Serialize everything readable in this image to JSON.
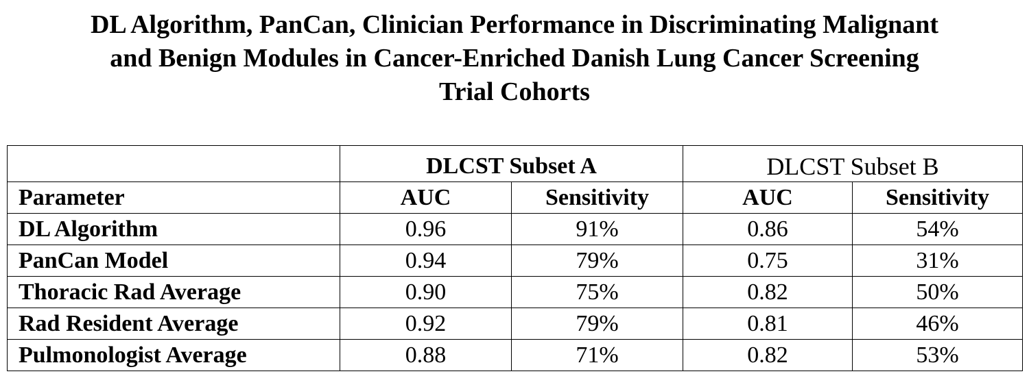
{
  "title": {
    "line1": "DL Algorithm, PanCan, Clinician Performance in Discriminating Malignant",
    "line2": "and Benign Modules in Cancer-Enriched Danish Lung Cancer Screening",
    "line3": "Trial Cohorts"
  },
  "table": {
    "group_headers": [
      "DLCST Subset A",
      "DLCST Subset B"
    ],
    "column_headers": [
      "Parameter",
      "AUC",
      "Sensitivity",
      "AUC",
      "Sensitivity"
    ],
    "rows": [
      {
        "parameter": "DL Algorithm",
        "a_auc": "0.96",
        "a_sens": "91%",
        "b_auc": "0.86",
        "b_sens": "54%"
      },
      {
        "parameter": "PanCan Model",
        "a_auc": "0.94",
        "a_sens": "79%",
        "b_auc": "0.75",
        "b_sens": "31%"
      },
      {
        "parameter": "Thoracic Rad Average",
        "a_auc": "0.90",
        "a_sens": "75%",
        "b_auc": "0.82",
        "b_sens": "50%"
      },
      {
        "parameter": "Rad Resident Average",
        "a_auc": "0.92",
        "a_sens": "79%",
        "b_auc": "0.81",
        "b_sens": "46%"
      },
      {
        "parameter": "Pulmonologist Average",
        "a_auc": "0.88",
        "a_sens": "71%",
        "b_auc": "0.82",
        "b_sens": "53%"
      }
    ]
  }
}
